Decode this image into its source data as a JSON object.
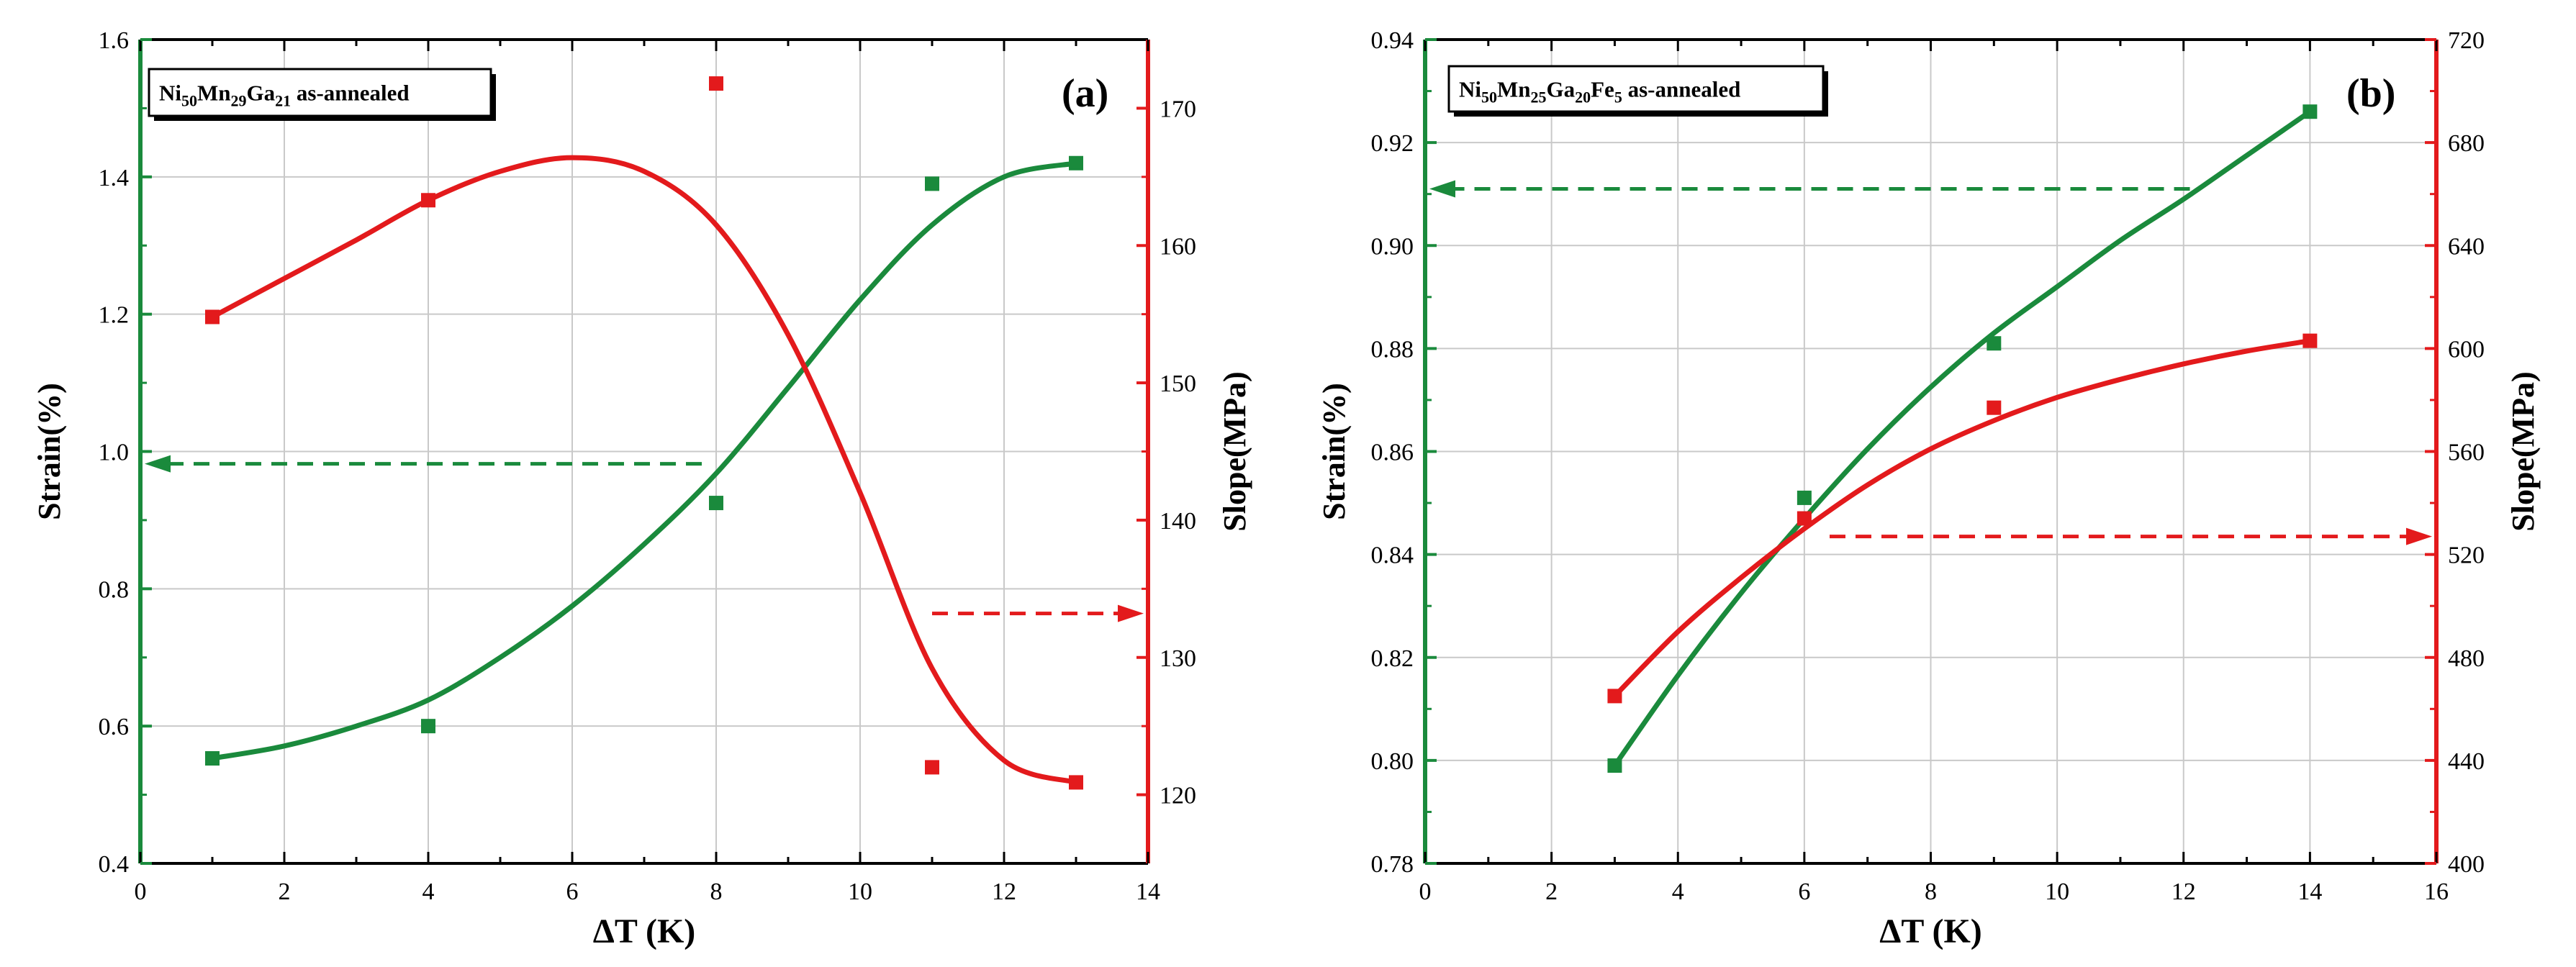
{
  "colors": {
    "strain": "#1a8a3c",
    "slope": "#e31a1c",
    "grid": "#c9c9c9",
    "frame": "#000000"
  },
  "chart_data": [
    {
      "type": "scatter",
      "panel_label": "(a)",
      "legend": {
        "prefix": "Ni",
        "parts": [
          {
            "t": "Ni",
            "s": false
          },
          {
            "t": "50",
            "s": true
          },
          {
            "t": "Mn",
            "s": false
          },
          {
            "t": "29",
            "s": true
          },
          {
            "t": "Ga",
            "s": false
          },
          {
            "t": "21",
            "s": true
          },
          {
            "t": " as-annealed",
            "s": false
          }
        ]
      },
      "xlabel": "ΔT (K)",
      "ylabel_left": "Strain(%)",
      "ylabel_right": "Slope(MPa)",
      "xlim": [
        0,
        14
      ],
      "xticks": [
        0,
        2,
        4,
        6,
        8,
        10,
        12,
        14
      ],
      "ylim_left": [
        0.4,
        1.6
      ],
      "yticks_left": [
        "0.4",
        "0.6",
        "0.8",
        "1.0",
        "1.2",
        "1.4",
        "1.6"
      ],
      "ylim_right": [
        115,
        175
      ],
      "yticks_right": [
        "120",
        "130",
        "140",
        "150",
        "160",
        "170"
      ],
      "series": [
        {
          "name": "Strain",
          "axis": "left",
          "x": [
            1,
            4,
            8,
            11,
            13
          ],
          "y": [
            0.553,
            0.6,
            0.925,
            1.39,
            1.42
          ],
          "fit": [
            [
              1,
              0.553
            ],
            [
              2,
              0.571
            ],
            [
              3,
              0.6
            ],
            [
              4,
              0.638
            ],
            [
              5,
              0.7
            ],
            [
              6,
              0.775
            ],
            [
              7,
              0.865
            ],
            [
              8,
              0.968
            ],
            [
              9,
              1.093
            ],
            [
              10,
              1.221
            ],
            [
              11,
              1.33
            ],
            [
              12,
              1.4
            ],
            [
              13,
              1.42
            ]
          ]
        },
        {
          "name": "Slope",
          "axis": "right",
          "x": [
            1,
            4,
            8,
            11,
            13
          ],
          "y": [
            154.8,
            163.3,
            171.8,
            122.0,
            120.9
          ],
          "fit": [
            [
              1,
              154.8
            ],
            [
              2,
              157.6
            ],
            [
              3,
              160.4
            ],
            [
              4,
              163.3
            ],
            [
              5,
              165.4
            ],
            [
              6,
              166.4
            ],
            [
              7,
              165.4
            ],
            [
              8,
              161.5
            ],
            [
              9,
              153.5
            ],
            [
              10,
              142.0
            ],
            [
              11,
              129.2
            ],
            [
              12,
              122.5
            ],
            [
              13,
              120.9
            ]
          ]
        }
      ],
      "arrows": [
        {
          "axis": "left",
          "y": 0.982,
          "x_from": 7.8,
          "x_to": 0,
          "color": "strain"
        },
        {
          "axis": "right",
          "y": 133.2,
          "x_from": 11.0,
          "x_to": 14,
          "color": "slope"
        }
      ]
    },
    {
      "type": "scatter",
      "panel_label": "(b)",
      "legend": {
        "parts": [
          {
            "t": "Ni",
            "s": false
          },
          {
            "t": "50",
            "s": true
          },
          {
            "t": "Mn",
            "s": false
          },
          {
            "t": "25",
            "s": true
          },
          {
            "t": "Ga",
            "s": false
          },
          {
            "t": "20",
            "s": true
          },
          {
            "t": "Fe",
            "s": false
          },
          {
            "t": "5",
            "s": true
          },
          {
            "t": " as-annealed",
            "s": false
          }
        ]
      },
      "xlabel": "ΔT (K)",
      "ylabel_left": "Strain(%)",
      "ylabel_right": "Slope(MPa)",
      "xlim": [
        0,
        16
      ],
      "xticks": [
        0,
        2,
        4,
        6,
        8,
        10,
        12,
        14,
        16
      ],
      "ylim_left": [
        0.78,
        0.94
      ],
      "yticks_left": [
        "0.78",
        "0.80",
        "0.82",
        "0.84",
        "0.86",
        "0.88",
        "0.90",
        "0.92",
        "0.94"
      ],
      "ylim_right": [
        400,
        720
      ],
      "yticks_right": [
        "400",
        "440",
        "480",
        "520",
        "560",
        "600",
        "640",
        "680",
        "720"
      ],
      "series": [
        {
          "name": "Strain",
          "axis": "left",
          "x": [
            3,
            6,
            9,
            14
          ],
          "y": [
            0.799,
            0.851,
            0.881,
            0.926
          ],
          "fit": [
            [
              3,
              0.799
            ],
            [
              4,
              0.8165
            ],
            [
              5,
              0.8325
            ],
            [
              6,
              0.847
            ],
            [
              7,
              0.8605
            ],
            [
              8,
              0.8725
            ],
            [
              9,
              0.883
            ],
            [
              10,
              0.892
            ],
            [
              11,
              0.901
            ],
            [
              12,
              0.909
            ],
            [
              13,
              0.9175
            ],
            [
              14,
              0.926
            ]
          ]
        },
        {
          "name": "Slope",
          "axis": "right",
          "x": [
            3,
            6,
            9,
            14
          ],
          "y": [
            465,
            534,
            577,
            603
          ],
          "fit": [
            [
              3,
              465
            ],
            [
              4,
              490
            ],
            [
              5,
              511
            ],
            [
              6,
              530
            ],
            [
              7,
              547
            ],
            [
              8,
              561
            ],
            [
              9,
              572
            ],
            [
              10,
              581
            ],
            [
              11,
              588
            ],
            [
              12,
              594
            ],
            [
              13,
              599
            ],
            [
              14,
              603
            ]
          ]
        }
      ],
      "arrows": [
        {
          "axis": "left",
          "y": 0.911,
          "x_from": 12.1,
          "x_to": 0,
          "color": "strain"
        },
        {
          "axis": "right",
          "y": 527,
          "x_from": 6.4,
          "x_to": 16,
          "color": "slope"
        }
      ]
    }
  ]
}
